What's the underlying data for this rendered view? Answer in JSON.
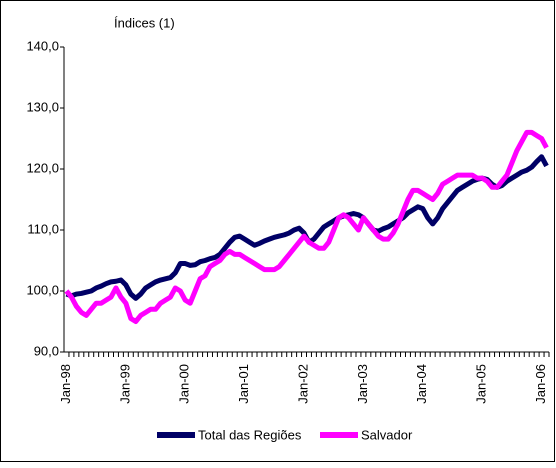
{
  "chart_data": {
    "type": "line",
    "title": "Índices (1)",
    "categories": [
      "Jan-98",
      null,
      null,
      null,
      null,
      null,
      null,
      null,
      null,
      null,
      null,
      null,
      "Jan-99",
      null,
      null,
      null,
      null,
      null,
      null,
      null,
      null,
      null,
      null,
      null,
      "Jan-00",
      null,
      null,
      null,
      null,
      null,
      null,
      null,
      null,
      null,
      null,
      null,
      "Jan-01",
      null,
      null,
      null,
      null,
      null,
      null,
      null,
      null,
      null,
      null,
      null,
      "Jan-02",
      null,
      null,
      null,
      null,
      null,
      null,
      null,
      null,
      null,
      null,
      null,
      "Jan-03",
      null,
      null,
      null,
      null,
      null,
      null,
      null,
      null,
      null,
      null,
      null,
      "Jan-04",
      null,
      null,
      null,
      null,
      null,
      null,
      null,
      null,
      null,
      null,
      null,
      "Jan-05",
      null,
      null,
      null,
      null,
      null,
      null,
      null,
      null,
      null,
      null,
      null,
      "Jan-06",
      null
    ],
    "series": [
      {
        "name": "Total das Regiões",
        "color": "#000066",
        "values": [
          99.5,
          99.2,
          99.5,
          99.6,
          99.8,
          100,
          100.5,
          100.8,
          101.2,
          101.5,
          101.6,
          101.8,
          101,
          99.5,
          98.8,
          99.5,
          100.5,
          101,
          101.5,
          101.8,
          102,
          102.2,
          103,
          104.5,
          104.5,
          104.2,
          104.3,
          104.8,
          105,
          105.3,
          105.5,
          106,
          107,
          108,
          108.8,
          109,
          108.5,
          108,
          107.5,
          107.8,
          108.2,
          108.5,
          108.8,
          109,
          109.2,
          109.5,
          110,
          110.3,
          109.5,
          108,
          108.5,
          109.5,
          110.5,
          111,
          111.5,
          112,
          112.3,
          112.5,
          112.7,
          112.5,
          112,
          111,
          110,
          109.8,
          110.2,
          110.5,
          111,
          111.5,
          112,
          112.8,
          113.3,
          113.8,
          113.5,
          112,
          111,
          112,
          113.5,
          114.5,
          115.5,
          116.5,
          117,
          117.5,
          118,
          118.3,
          118.5,
          118.3,
          117.5,
          117,
          117.3,
          118,
          118.5,
          119,
          119.5,
          119.8,
          120.3,
          121.2,
          122,
          120.5
        ]
      },
      {
        "name": "Salvador",
        "color": "#ff00ff",
        "values": [
          100,
          99,
          97.5,
          96.5,
          96,
          97,
          98,
          98,
          98.5,
          99,
          100.5,
          99,
          98,
          95.5,
          95,
          96,
          96.5,
          97,
          97,
          98,
          98.5,
          99,
          100.5,
          100,
          98.5,
          98,
          100,
          102,
          102.5,
          104,
          104.5,
          105,
          106,
          106.5,
          106,
          106,
          105.5,
          105,
          104.5,
          104,
          103.5,
          103.5,
          103.5,
          104,
          105,
          106,
          107,
          108,
          109,
          108,
          107.5,
          107,
          107,
          108,
          110,
          112,
          112.5,
          112,
          111,
          110,
          112,
          111,
          110,
          109,
          108.5,
          108.5,
          109.5,
          111,
          113,
          115,
          116.5,
          116.5,
          116,
          115.5,
          115,
          116,
          117.5,
          118,
          118.5,
          119,
          119,
          119,
          119,
          118.5,
          118.5,
          118,
          117,
          117,
          118,
          119,
          121,
          123,
          124.5,
          126,
          126,
          125.5,
          125,
          123.5
        ]
      }
    ],
    "ylim": [
      90,
      140
    ],
    "yticks": [
      {
        "value": 90,
        "label": "90,0"
      },
      {
        "value": 100,
        "label": "100,0"
      },
      {
        "value": 110,
        "label": "110,0"
      },
      {
        "value": 120,
        "label": "120,0"
      },
      {
        "value": 130,
        "label": "130,0"
      },
      {
        "value": 140,
        "label": "140,0"
      }
    ],
    "grid": false,
    "legend": "bottom"
  }
}
